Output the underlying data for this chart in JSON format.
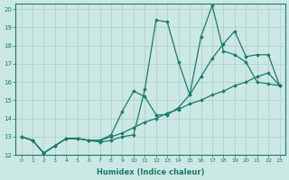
{
  "title": "",
  "xlabel": "Humidex (Indice chaleur)",
  "ylabel": "",
  "xlim": [
    -0.5,
    23.5
  ],
  "ylim": [
    12,
    20.3
  ],
  "yticks": [
    12,
    13,
    14,
    15,
    16,
    17,
    18,
    19,
    20
  ],
  "xticks": [
    0,
    1,
    2,
    3,
    4,
    5,
    6,
    7,
    8,
    9,
    10,
    11,
    12,
    13,
    14,
    15,
    16,
    17,
    18,
    19,
    20,
    21,
    22,
    23
  ],
  "bg_color": "#cce8e4",
  "grid_color": "#aaceca",
  "line_color": "#1a7a6a",
  "line_width": 0.9,
  "marker": "D",
  "marker_size": 1.8,
  "series": [
    [
      13.0,
      12.8,
      12.1,
      12.5,
      12.9,
      12.9,
      12.8,
      12.7,
      12.8,
      13.0,
      13.1,
      15.6,
      19.4,
      19.3,
      17.1,
      15.3,
      18.5,
      20.2,
      17.7,
      17.5,
      17.1,
      16.0,
      15.9,
      15.8
    ],
    [
      13.0,
      12.8,
      12.1,
      12.5,
      12.9,
      12.9,
      12.8,
      12.8,
      13.1,
      14.4,
      15.5,
      15.2,
      14.2,
      14.2,
      14.6,
      15.3,
      16.3,
      17.3,
      18.1,
      18.8,
      17.4,
      17.5,
      17.5,
      15.8
    ],
    [
      13.0,
      12.8,
      12.1,
      12.5,
      12.9,
      12.9,
      12.8,
      12.8,
      13.0,
      13.2,
      13.5,
      13.8,
      14.0,
      14.3,
      14.5,
      14.8,
      15.0,
      15.3,
      15.5,
      15.8,
      16.0,
      16.3,
      16.5,
      15.8
    ]
  ]
}
